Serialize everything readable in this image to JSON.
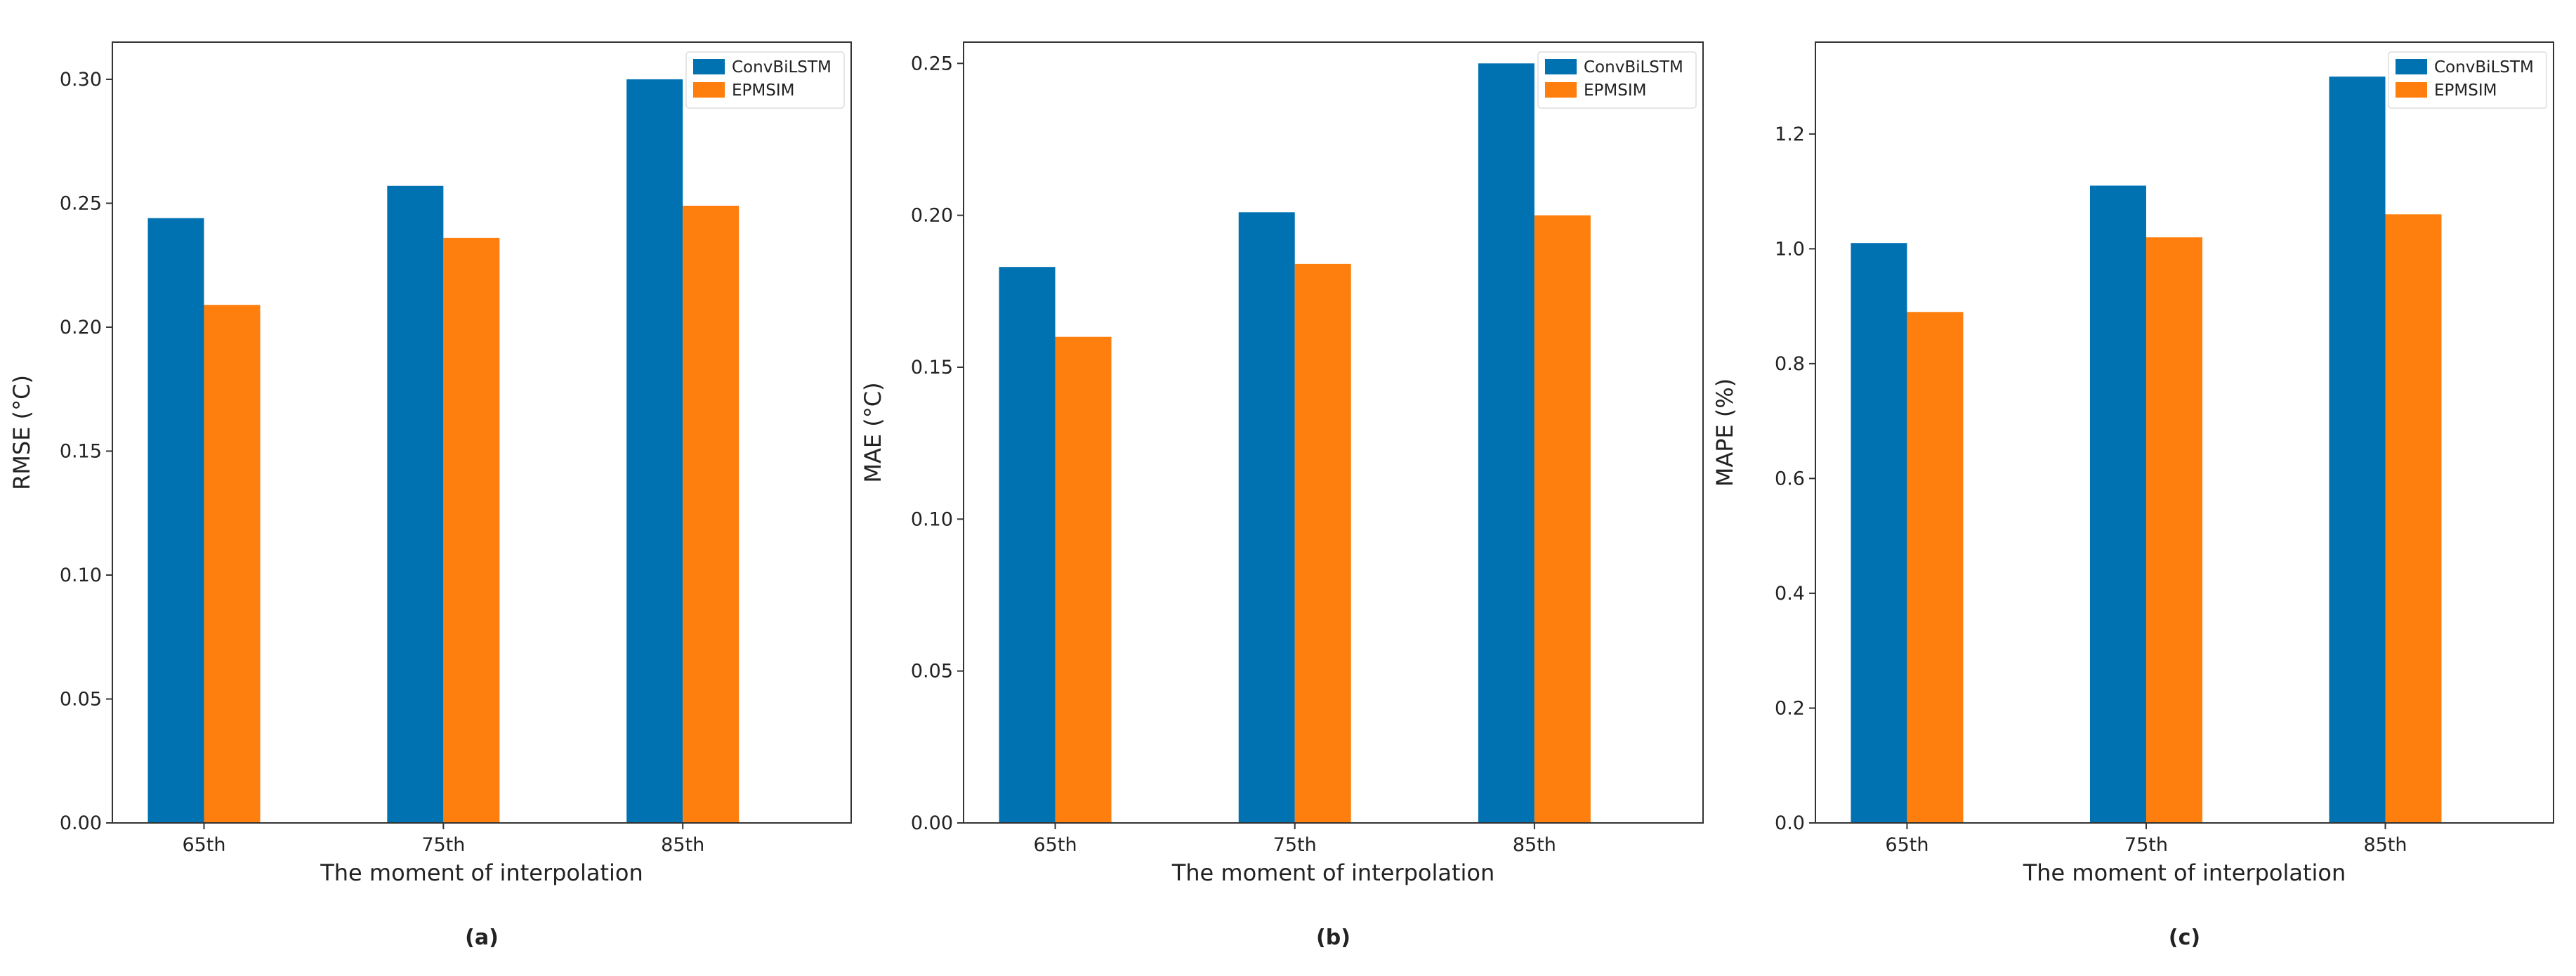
{
  "figure": {
    "panel_labels": [
      "(a)",
      "(b)",
      "(c)"
    ]
  },
  "colors": {
    "ConvBiLSTM": "#0072b2",
    "EPMSIM": "#ff7f0e",
    "axis": "#333333"
  },
  "chart_data": [
    {
      "type": "bar",
      "categories": [
        "65th",
        "75th",
        "85th"
      ],
      "series": [
        {
          "name": "ConvBiLSTM",
          "values": [
            0.244,
            0.257,
            0.3
          ]
        },
        {
          "name": "EPMSIM",
          "values": [
            0.209,
            0.236,
            0.249
          ]
        }
      ],
      "xlabel": "The moment of interpolation",
      "ylabel": "RMSE (°C)",
      "ylim": [
        0,
        0.315
      ],
      "yticks": [
        0.0,
        0.05,
        0.1,
        0.15,
        0.2,
        0.25,
        0.3
      ],
      "ytick_labels": [
        "0.00",
        "0.05",
        "0.10",
        "0.15",
        "0.20",
        "0.25",
        "0.30"
      ],
      "legend": "top-right",
      "grid": false
    },
    {
      "type": "bar",
      "categories": [
        "65th",
        "75th",
        "85th"
      ],
      "series": [
        {
          "name": "ConvBiLSTM",
          "values": [
            0.183,
            0.201,
            0.25
          ]
        },
        {
          "name": "EPMSIM",
          "values": [
            0.16,
            0.184,
            0.2
          ]
        }
      ],
      "xlabel": "The moment of interpolation",
      "ylabel": "MAE (°C)",
      "ylim": [
        0,
        0.257
      ],
      "yticks": [
        0.0,
        0.05,
        0.1,
        0.15,
        0.2,
        0.25
      ],
      "ytick_labels": [
        "0.00",
        "0.05",
        "0.10",
        "0.15",
        "0.20",
        "0.25"
      ],
      "legend": "top-right",
      "grid": false
    },
    {
      "type": "bar",
      "categories": [
        "65th",
        "75th",
        "85th"
      ],
      "series": [
        {
          "name": "ConvBiLSTM",
          "values": [
            1.01,
            1.11,
            1.3
          ]
        },
        {
          "name": "EPMSIM",
          "values": [
            0.89,
            1.02,
            1.06
          ]
        }
      ],
      "xlabel": "The moment of interpolation",
      "ylabel": "MAPE (%)",
      "ylim": [
        0,
        1.36
      ],
      "yticks": [
        0.0,
        0.2,
        0.4,
        0.6,
        0.8,
        1.0,
        1.2
      ],
      "ytick_labels": [
        "0.0",
        "0.2",
        "0.4",
        "0.6",
        "0.8",
        "1.0",
        "1.2"
      ],
      "legend": "top-right",
      "grid": false
    }
  ]
}
